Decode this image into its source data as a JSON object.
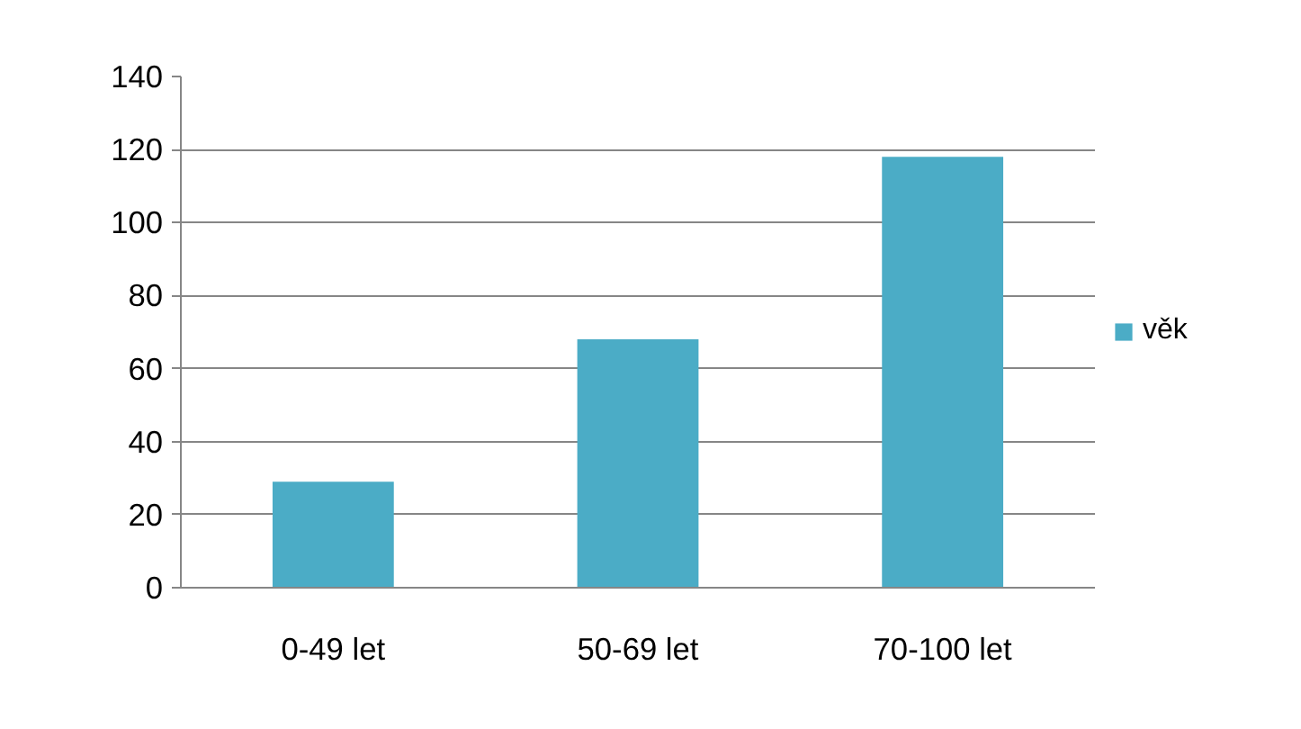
{
  "chart_data": {
    "type": "bar",
    "categories": [
      "0-49 let",
      "50-69 let",
      "70-100 let"
    ],
    "series": [
      {
        "name": "věk",
        "color": "#4bacc6",
        "values": [
          29,
          68,
          118
        ]
      }
    ],
    "ylim": [
      0,
      140
    ],
    "yticks": [
      0,
      20,
      40,
      60,
      80,
      100,
      120,
      140
    ],
    "grid": "y",
    "legend": "right"
  }
}
